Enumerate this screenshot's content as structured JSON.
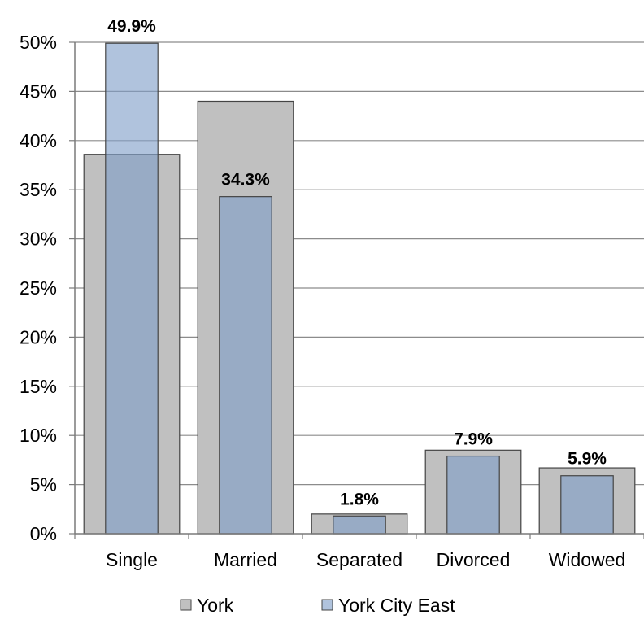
{
  "chart_data": {
    "type": "bar",
    "categories": [
      "Single",
      "Married",
      "Separated",
      "Divorced",
      "Widowed"
    ],
    "series": [
      {
        "name": "York",
        "values": [
          38.6,
          44.0,
          2.0,
          8.5,
          6.7
        ],
        "color": "#c0c0c0",
        "data_labels": [
          "",
          "",
          "",
          "",
          ""
        ]
      },
      {
        "name": "York City East",
        "values": [
          49.9,
          34.3,
          1.8,
          7.9,
          5.9
        ],
        "color": "#7f9ec8",
        "data_labels": [
          "49.9%",
          "34.3%",
          "1.8%",
          "7.9%",
          "5.9%"
        ]
      }
    ],
    "yticks": [
      "0%",
      "5%",
      "10%",
      "15%",
      "20%",
      "25%",
      "30%",
      "35%",
      "40%",
      "45%",
      "50%"
    ],
    "ylim": [
      0,
      50
    ],
    "grid": true,
    "legend_position": "bottom",
    "title": "",
    "xlabel": "",
    "ylabel": ""
  }
}
